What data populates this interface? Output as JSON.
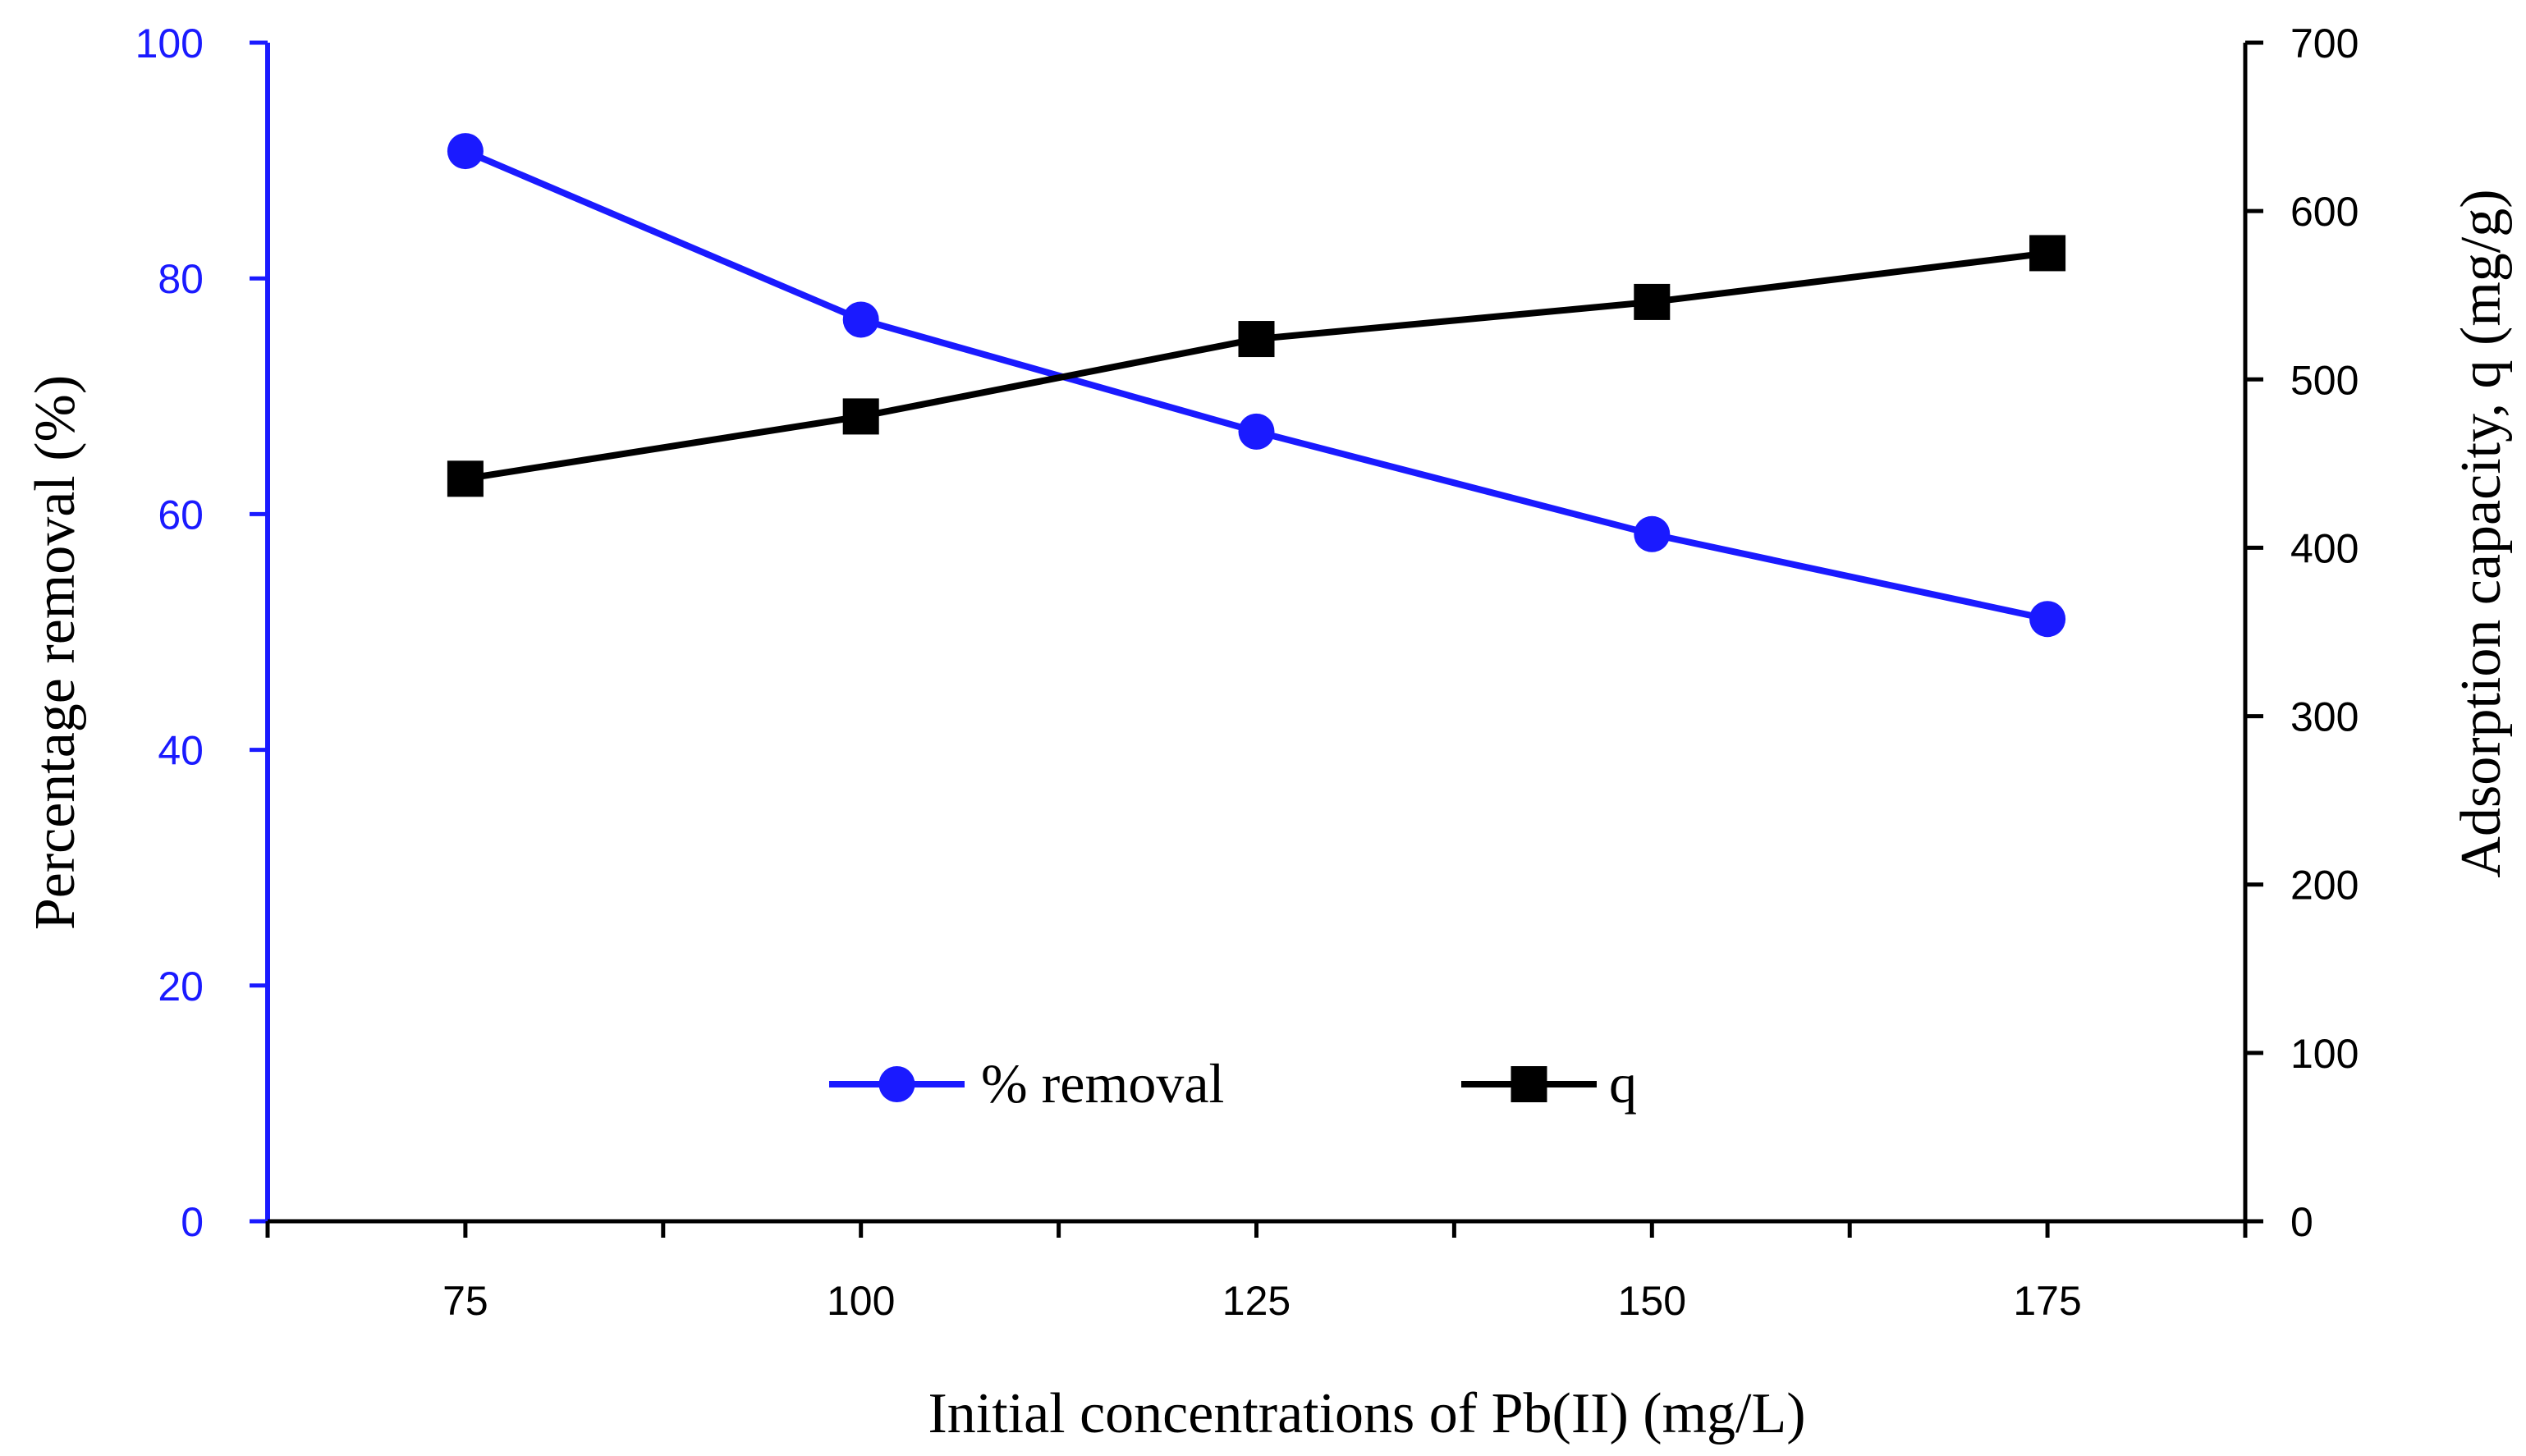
{
  "chart_data": {
    "type": "line",
    "title": "",
    "xlabel": "Initial concentrations of Pb(II) (mg/L)",
    "ylabel_left": "Percentage removal (%)",
    "ylabel_right": "Adsorption capacity, q (mg/g)",
    "xlim": [
      62.5,
      187.5
    ],
    "x_ticks": [
      75,
      100,
      125,
      150,
      175
    ],
    "x_tick_labels": [
      "75",
      "100",
      "125",
      "150",
      "175"
    ],
    "ylim_left": [
      0,
      100
    ],
    "y_ticks_left": [
      0,
      20,
      40,
      60,
      80,
      100
    ],
    "y_tick_labels_left": [
      "0",
      "20",
      "40",
      "60",
      "80",
      "100"
    ],
    "ylim_right": [
      0,
      700
    ],
    "y_ticks_right": [
      0,
      100,
      200,
      300,
      400,
      500,
      600,
      700
    ],
    "y_tick_labels_right": [
      "0",
      "100",
      "200",
      "300",
      "400",
      "500",
      "600",
      "700"
    ],
    "grid": false,
    "legend_position": "bottom-center",
    "series": [
      {
        "name": "% removal",
        "axis": "left",
        "marker": "circle",
        "color": "#1a1aff",
        "x": [
          75,
          100,
          125,
          150,
          175
        ],
        "values": [
          90.8,
          76.5,
          67.0,
          58.3,
          51.1
        ]
      },
      {
        "name": "q",
        "axis": "right",
        "marker": "square",
        "color": "#000000",
        "x": [
          75,
          100,
          125,
          150,
          175
        ],
        "values": [
          441,
          478,
          524,
          546,
          575
        ]
      }
    ]
  }
}
